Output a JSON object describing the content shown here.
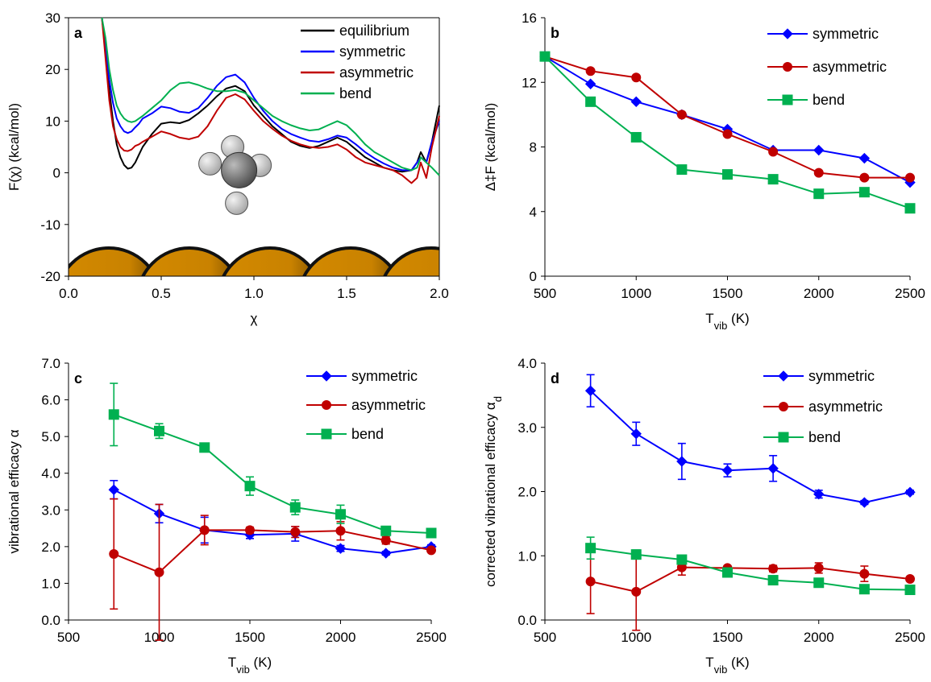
{
  "chart_data": [
    {
      "panel": "a",
      "type": "line",
      "xlabel": "χ",
      "ylabel": "F(χ) (kcal/mol)",
      "xlim": [
        0.0,
        2.0
      ],
      "ylim": [
        -20,
        30
      ],
      "xticks": [
        "0.0",
        "0.5",
        "1.0",
        "1.5",
        "2.0"
      ],
      "yticks": [
        "-20",
        "-10",
        "0",
        "10",
        "20",
        "30"
      ],
      "legend_position": "top-right",
      "series": [
        {
          "name": "equilibrium",
          "color": "#000000",
          "x": [
            0.18,
            0.2,
            0.22,
            0.24,
            0.26,
            0.28,
            0.3,
            0.32,
            0.34,
            0.36,
            0.38,
            0.4,
            0.45,
            0.5,
            0.55,
            0.6,
            0.65,
            0.7,
            0.75,
            0.8,
            0.85,
            0.9,
            0.95,
            1.0,
            1.05,
            1.1,
            1.15,
            1.2,
            1.25,
            1.3,
            1.35,
            1.4,
            1.45,
            1.5,
            1.55,
            1.6,
            1.65,
            1.7,
            1.75,
            1.8,
            1.85,
            1.88,
            1.9,
            1.93,
            1.96,
            2.0
          ],
          "y": [
            32,
            24,
            16,
            10,
            5.5,
            3,
            1.5,
            0.8,
            1,
            2,
            3.5,
            5,
            7.5,
            9.5,
            9.8,
            9.6,
            10.2,
            11.5,
            13,
            14.8,
            16.3,
            16.8,
            15.8,
            13,
            11,
            9,
            7.5,
            6,
            5.2,
            4.8,
            5.2,
            6,
            6.8,
            6,
            4.5,
            3,
            2,
            1,
            0.5,
            0.2,
            0.5,
            2,
            4,
            2,
            6,
            13
          ]
        },
        {
          "name": "symmetric",
          "color": "#0000ff",
          "x": [
            0.18,
            0.2,
            0.22,
            0.24,
            0.26,
            0.28,
            0.3,
            0.32,
            0.34,
            0.36,
            0.38,
            0.4,
            0.45,
            0.5,
            0.55,
            0.6,
            0.65,
            0.7,
            0.75,
            0.8,
            0.85,
            0.9,
            0.95,
            1.0,
            1.05,
            1.1,
            1.15,
            1.2,
            1.25,
            1.3,
            1.35,
            1.4,
            1.45,
            1.5,
            1.55,
            1.6,
            1.65,
            1.7,
            1.75,
            1.8,
            1.85,
            1.88,
            1.9,
            1.93,
            1.96,
            2.0
          ],
          "y": [
            32,
            24,
            18,
            13.5,
            10.5,
            9,
            8,
            7.7,
            8,
            8.8,
            9.5,
            10.5,
            11.5,
            12.8,
            12.5,
            11.8,
            11.6,
            12.5,
            14.5,
            16.8,
            18.5,
            19,
            17.5,
            14.5,
            12,
            10,
            8.5,
            7.5,
            6.8,
            6.2,
            6,
            6.5,
            7.2,
            6.8,
            5.5,
            4,
            2.8,
            1.8,
            1,
            0.5,
            0.5,
            2,
            3,
            2,
            6,
            10
          ]
        },
        {
          "name": "asymmetric",
          "color": "#c00000",
          "x": [
            0.18,
            0.2,
            0.22,
            0.24,
            0.26,
            0.28,
            0.3,
            0.32,
            0.34,
            0.36,
            0.38,
            0.4,
            0.45,
            0.5,
            0.55,
            0.6,
            0.65,
            0.7,
            0.75,
            0.8,
            0.85,
            0.9,
            0.95,
            1.0,
            1.05,
            1.1,
            1.15,
            1.2,
            1.25,
            1.3,
            1.35,
            1.4,
            1.45,
            1.5,
            1.55,
            1.6,
            1.65,
            1.7,
            1.75,
            1.8,
            1.85,
            1.88,
            1.9,
            1.93,
            1.96,
            2.0
          ],
          "y": [
            32,
            22,
            14,
            9,
            6.5,
            5,
            4.3,
            4.2,
            4.5,
            5.2,
            5.5,
            6,
            7,
            8,
            7.5,
            6.8,
            6.5,
            7,
            9,
            12,
            14.5,
            15.2,
            14.2,
            12,
            10,
            8.5,
            7.2,
            6.2,
            5.5,
            5,
            4.8,
            5,
            5.5,
            4.5,
            3,
            2,
            1.5,
            1,
            0.5,
            -0.5,
            -2,
            -1,
            2,
            -1,
            5,
            11
          ]
        },
        {
          "name": "bend",
          "color": "#00b050",
          "x": [
            0.18,
            0.2,
            0.22,
            0.24,
            0.26,
            0.28,
            0.3,
            0.32,
            0.34,
            0.36,
            0.38,
            0.4,
            0.45,
            0.5,
            0.55,
            0.6,
            0.65,
            0.7,
            0.75,
            0.8,
            0.85,
            0.9,
            0.95,
            1.0,
            1.05,
            1.1,
            1.15,
            1.2,
            1.25,
            1.3,
            1.35,
            1.4,
            1.45,
            1.5,
            1.55,
            1.6,
            1.65,
            1.7,
            1.75,
            1.8,
            1.85,
            1.88,
            1.9,
            1.93,
            1.96,
            2.0
          ],
          "y": [
            32,
            26,
            20,
            16,
            13,
            11.5,
            10.5,
            10,
            9.8,
            10,
            10.5,
            11,
            12.5,
            14,
            16,
            17.3,
            17.5,
            17,
            16.3,
            15.8,
            15.8,
            16,
            15.5,
            14,
            12.5,
            11,
            10,
            9.2,
            8.6,
            8.2,
            8.4,
            9.2,
            10,
            9.2,
            7.5,
            5.5,
            4,
            3,
            2,
            1,
            0.5,
            1,
            3,
            2,
            1,
            -0.5
          ]
        }
      ]
    },
    {
      "panel": "b",
      "type": "line",
      "xlabel": "T_vib (K)",
      "ylabel": "Δ‡F (kcal/mol)",
      "xlim": [
        500,
        2500
      ],
      "ylim": [
        0,
        16
      ],
      "xticks": [
        "500",
        "1000",
        "1500",
        "2000",
        "2500"
      ],
      "yticks": [
        "0",
        "4",
        "8",
        "12",
        "16"
      ],
      "x": [
        500,
        750,
        1000,
        1250,
        1500,
        1750,
        2000,
        2250,
        2500
      ],
      "legend_position": "top-right",
      "series": [
        {
          "name": "symmetric",
          "color": "#0000ff",
          "marker": "diamond",
          "values": [
            13.6,
            11.9,
            10.8,
            10.0,
            9.1,
            7.8,
            7.8,
            7.3,
            5.8
          ]
        },
        {
          "name": "asymmetric",
          "color": "#c00000",
          "marker": "circle",
          "values": [
            13.6,
            12.7,
            12.3,
            10.0,
            8.8,
            7.7,
            6.4,
            6.1,
            6.1
          ]
        },
        {
          "name": "bend",
          "color": "#00b050",
          "marker": "square",
          "values": [
            13.6,
            10.8,
            8.6,
            6.6,
            6.3,
            6.0,
            5.1,
            5.2,
            4.2
          ]
        }
      ]
    },
    {
      "panel": "c",
      "type": "line",
      "xlabel": "T_vib (K)",
      "ylabel": "vibrational efficacy α",
      "xlim": [
        500,
        2500
      ],
      "ylim": [
        0.0,
        7.0
      ],
      "xticks": [
        "500",
        "1000",
        "1500",
        "2000",
        "2500"
      ],
      "yticks": [
        "0.0",
        "1.0",
        "2.0",
        "3.0",
        "4.0",
        "5.0",
        "6.0",
        "7.0"
      ],
      "x": [
        750,
        1000,
        1250,
        1500,
        1750,
        2000,
        2250,
        2500
      ],
      "legend_position": "top-right",
      "series": [
        {
          "name": "symmetric",
          "color": "#0000ff",
          "marker": "diamond",
          "values": [
            3.55,
            2.9,
            2.45,
            2.32,
            2.35,
            1.95,
            1.82,
            2.0
          ],
          "errors": [
            0.25,
            0.25,
            0.35,
            0.1,
            0.2,
            0.08,
            0.05,
            0.05
          ]
        },
        {
          "name": "asymmetric",
          "color": "#c00000",
          "marker": "circle",
          "values": [
            1.8,
            1.3,
            2.45,
            2.45,
            2.4,
            2.43,
            2.17,
            1.9
          ],
          "errors": [
            1.5,
            1.85,
            0.4,
            0.08,
            0.15,
            0.25,
            0.1,
            0.05
          ]
        },
        {
          "name": "bend",
          "color": "#00b050",
          "marker": "square",
          "values": [
            5.6,
            5.15,
            4.7,
            3.65,
            3.07,
            2.88,
            2.43,
            2.37
          ],
          "errors": [
            0.85,
            0.2,
            0.05,
            0.25,
            0.2,
            0.25,
            0.05,
            0.05
          ]
        }
      ]
    },
    {
      "panel": "d",
      "type": "line",
      "xlabel": "T_vib (K)",
      "ylabel": "corrected vibrational efficacy α_d",
      "xlim": [
        500,
        2500
      ],
      "ylim": [
        0.0,
        4.0
      ],
      "xticks": [
        "500",
        "1000",
        "1500",
        "2000",
        "2500"
      ],
      "yticks": [
        "0.0",
        "1.0",
        "2.0",
        "3.0",
        "4.0"
      ],
      "x": [
        750,
        1000,
        1250,
        1500,
        1750,
        2000,
        2250,
        2500
      ],
      "legend_position": "top-right",
      "series": [
        {
          "name": "symmetric",
          "color": "#0000ff",
          "marker": "diamond",
          "values": [
            3.57,
            2.9,
            2.47,
            2.33,
            2.36,
            1.96,
            1.83,
            1.99
          ],
          "errors": [
            0.25,
            0.18,
            0.28,
            0.1,
            0.2,
            0.06,
            0.03,
            0.03
          ]
        },
        {
          "name": "asymmetric",
          "color": "#c00000",
          "marker": "circle",
          "values": [
            0.6,
            0.44,
            0.82,
            0.81,
            0.8,
            0.81,
            0.72,
            0.64
          ],
          "errors": [
            0.5,
            0.6,
            0.12,
            0.03,
            0.05,
            0.08,
            0.12,
            0.03
          ]
        },
        {
          "name": "bend",
          "color": "#00b050",
          "marker": "square",
          "values": [
            1.12,
            1.02,
            0.94,
            0.74,
            0.62,
            0.58,
            0.48,
            0.47
          ],
          "errors": [
            0.17,
            0.07,
            0.03,
            0.05,
            0.05,
            0.05,
            0.03,
            0.02
          ]
        }
      ]
    }
  ]
}
